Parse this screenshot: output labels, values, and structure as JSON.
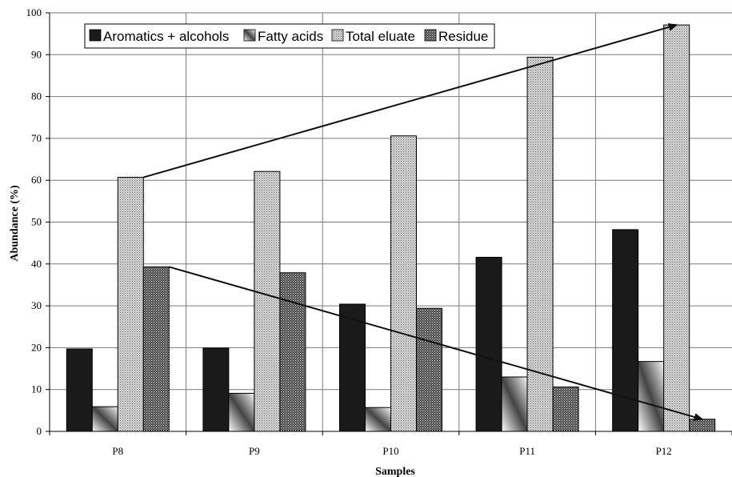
{
  "chart_data": {
    "type": "bar",
    "xlabel": "Samples",
    "ylabel": "Abundance (%)",
    "ylim": [
      0,
      100
    ],
    "yticks": [
      0,
      10,
      20,
      30,
      40,
      50,
      60,
      70,
      80,
      90,
      100
    ],
    "categories": [
      "P8",
      "P9",
      "P10",
      "P11",
      "P12"
    ],
    "series": [
      {
        "name": "Aromatics + alcohols",
        "values": [
          19.7,
          19.9,
          30.4,
          41.6,
          48.2
        ],
        "fill": "solid",
        "color": "#1a1a1a"
      },
      {
        "name": "Fatty acids",
        "values": [
          5.9,
          9.1,
          5.7,
          13.0,
          16.7
        ],
        "fill": "gradient",
        "color": "#7a7a7a"
      },
      {
        "name": "Total eluate",
        "values": [
          60.7,
          62.1,
          70.6,
          89.4,
          97.1
        ],
        "fill": "dots-light",
        "color": "#b3b3b3"
      },
      {
        "name": "Residue",
        "values": [
          39.3,
          37.9,
          29.4,
          10.6,
          2.9
        ],
        "fill": "dots-dark",
        "color": "#5e5e5e"
      }
    ],
    "grid": true,
    "legend_position": "top-left",
    "trend_arrows": [
      {
        "series": "Total eluate",
        "from_category": "P8",
        "to_category": "P12",
        "from_value": 60.7,
        "to_value": 97.1
      },
      {
        "series": "Residue",
        "from_category": "P8",
        "to_category": "P12",
        "from_value": 39.3,
        "to_value": 2.9
      }
    ]
  }
}
